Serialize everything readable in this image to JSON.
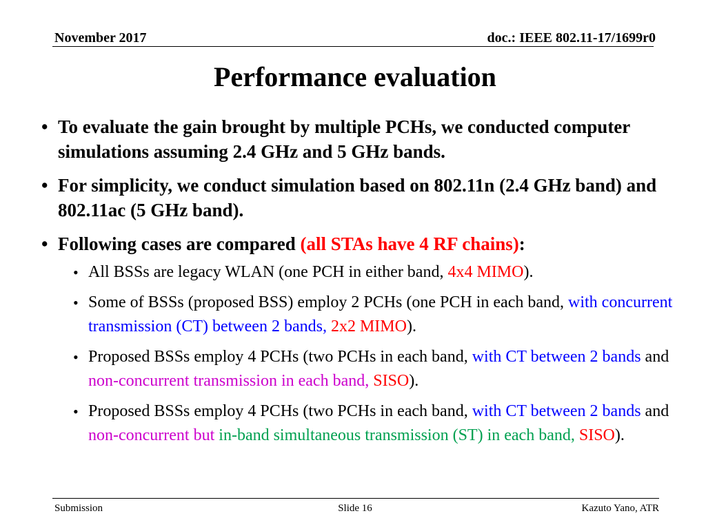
{
  "header": {
    "date": "November 2017",
    "doc_id": "doc.: IEEE 802.11-17/1699r0"
  },
  "title": "Performance evaluation",
  "bullet_glyph": "•",
  "bullets": [
    {
      "runs": [
        {
          "text": "To evaluate the gain brought by multiple PCHs, we conducted computer simulations assuming 2.4 GHz and 5 GHz bands.",
          "color": "black"
        }
      ]
    },
    {
      "runs": [
        {
          "text": "For simplicity, we conduct simulation based on 802.11n (2.4 GHz band) and 802.11ac (5 GHz band).",
          "color": "black"
        }
      ]
    },
    {
      "runs": [
        {
          "text": "Following cases are compared ",
          "color": "black"
        },
        {
          "text": "(all STAs have 4 RF chains)",
          "color": "red"
        },
        {
          "text": ":",
          "color": "black"
        }
      ],
      "sub_bullets": [
        {
          "runs": [
            {
              "text": "All BSSs are legacy WLAN (one PCH in either band, ",
              "color": "black"
            },
            {
              "text": "4x4 MIMO",
              "color": "red"
            },
            {
              "text": ").",
              "color": "black"
            }
          ]
        },
        {
          "runs": [
            {
              "text": "Some of BSSs (proposed BSS) employ 2 PCHs (one PCH in each band, ",
              "color": "black"
            },
            {
              "text": "with concurrent transmission (CT) between 2 bands, ",
              "color": "blue"
            },
            {
              "text": "2x2 MIMO",
              "color": "red"
            },
            {
              "text": ").",
              "color": "black"
            }
          ]
        },
        {
          "runs": [
            {
              "text": "Proposed BSSs employ 4 PCHs (two PCHs in each band, ",
              "color": "black"
            },
            {
              "text": "with CT between 2 bands",
              "color": "blue"
            },
            {
              "text": " and ",
              "color": "black"
            },
            {
              "text": "non-concurrent transmission in each band, ",
              "color": "purple"
            },
            {
              "text": "SISO",
              "color": "red"
            },
            {
              "text": ").",
              "color": "black"
            }
          ]
        },
        {
          "runs": [
            {
              "text": "Proposed BSSs employ 4 PCHs (two PCHs in each band, ",
              "color": "black"
            },
            {
              "text": "with CT between 2 bands",
              "color": "blue"
            },
            {
              "text": " and ",
              "color": "black"
            },
            {
              "text": "non-concurrent but ",
              "color": "purple"
            },
            {
              "text": "in-band simultaneous transmission (ST) in each band, ",
              "color": "green"
            },
            {
              "text": "SISO",
              "color": "red"
            },
            {
              "text": ").",
              "color": "black"
            }
          ]
        }
      ]
    }
  ],
  "footer": {
    "left": "Submission",
    "center": "Slide 16",
    "right": "Kazuto Yano, ATR"
  },
  "colors": {
    "black": "#000000",
    "red": "#ff0000",
    "blue": "#0000ff",
    "purple": "#cc00cc",
    "green": "#00a050"
  }
}
